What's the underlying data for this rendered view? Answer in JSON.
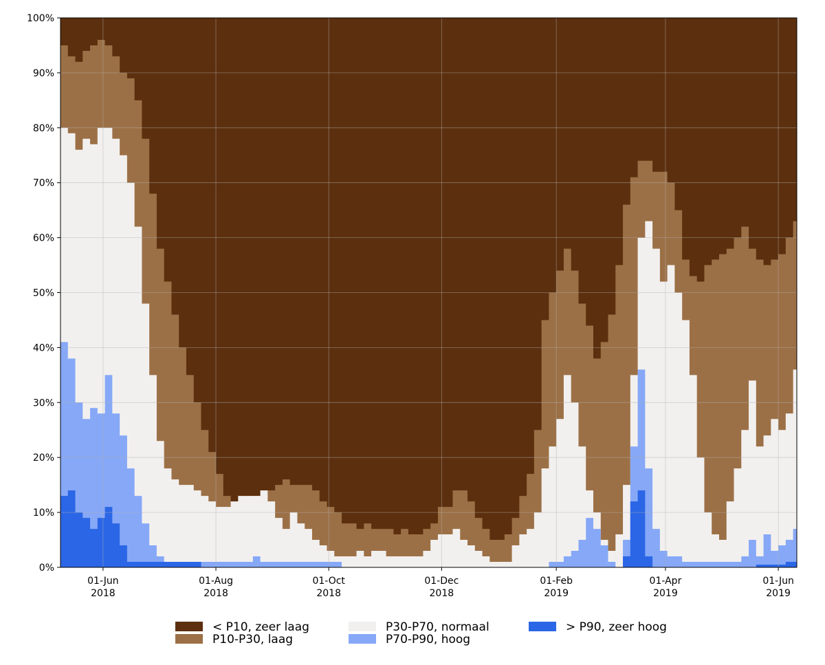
{
  "chart_data": {
    "type": "area",
    "stacked": true,
    "normalized": true,
    "step": true,
    "title": "",
    "xlabel": "",
    "ylabel": "",
    "xlim": [
      "2018-05-09",
      "2019-06-11"
    ],
    "ylim": [
      0,
      100
    ],
    "grid": true,
    "legend_position": "bottom",
    "y_ticks": [
      {
        "value": 0,
        "label": "0%"
      },
      {
        "value": 10,
        "label": "10%"
      },
      {
        "value": 20,
        "label": "20%"
      },
      {
        "value": 30,
        "label": "30%"
      },
      {
        "value": 40,
        "label": "40%"
      },
      {
        "value": 50,
        "label": "50%"
      },
      {
        "value": 60,
        "label": "60%"
      },
      {
        "value": 70,
        "label": "70%"
      },
      {
        "value": 80,
        "label": "80%"
      },
      {
        "value": 90,
        "label": "90%"
      },
      {
        "value": 100,
        "label": "100%"
      }
    ],
    "x_ticks": [
      {
        "date": "2018-06-01",
        "label": "01-Jun",
        "year": "2018"
      },
      {
        "date": "2018-08-01",
        "label": "01-Aug",
        "year": "2018"
      },
      {
        "date": "2018-10-01",
        "label": "01-Oct",
        "year": "2018"
      },
      {
        "date": "2018-12-01",
        "label": "01-Dec",
        "year": "2018"
      },
      {
        "date": "2019-02-01",
        "label": "01-Feb",
        "year": "2019"
      },
      {
        "date": "2019-04-01",
        "label": "01-Apr",
        "year": "2019"
      },
      {
        "date": "2019-06-01",
        "label": "01-Jun",
        "year": "2019"
      }
    ],
    "series_order_from_bottom": [
      "> P90, zeer hoog",
      "P70-P90, hoog",
      "P30-P70, normaal",
      "P10-P30, laag",
      "< P10, zeer laag"
    ],
    "boundaries": {
      "x": [
        "2018-05-09",
        "2018-05-13",
        "2018-05-17",
        "2018-05-21",
        "2018-05-25",
        "2018-05-29",
        "2018-06-02",
        "2018-06-06",
        "2018-06-10",
        "2018-06-14",
        "2018-06-18",
        "2018-06-22",
        "2018-06-26",
        "2018-06-30",
        "2018-07-04",
        "2018-07-08",
        "2018-07-12",
        "2018-07-16",
        "2018-07-20",
        "2018-07-24",
        "2018-07-28",
        "2018-08-01",
        "2018-08-05",
        "2018-08-09",
        "2018-08-13",
        "2018-08-17",
        "2018-08-21",
        "2018-08-25",
        "2018-08-29",
        "2018-09-02",
        "2018-09-06",
        "2018-09-10",
        "2018-09-14",
        "2018-09-18",
        "2018-09-22",
        "2018-09-26",
        "2018-09-30",
        "2018-10-04",
        "2018-10-08",
        "2018-10-12",
        "2018-10-16",
        "2018-10-20",
        "2018-10-24",
        "2018-10-28",
        "2018-11-01",
        "2018-11-05",
        "2018-11-09",
        "2018-11-13",
        "2018-11-17",
        "2018-11-21",
        "2018-11-25",
        "2018-11-29",
        "2018-12-03",
        "2018-12-07",
        "2018-12-11",
        "2018-12-15",
        "2018-12-19",
        "2018-12-23",
        "2018-12-27",
        "2018-12-31",
        "2019-01-04",
        "2019-01-08",
        "2019-01-12",
        "2019-01-16",
        "2019-01-20",
        "2019-01-24",
        "2019-01-28",
        "2019-02-01",
        "2019-02-05",
        "2019-02-09",
        "2019-02-13",
        "2019-02-17",
        "2019-02-21",
        "2019-02-25",
        "2019-03-01",
        "2019-03-05",
        "2019-03-09",
        "2019-03-13",
        "2019-03-17",
        "2019-03-21",
        "2019-03-25",
        "2019-03-29",
        "2019-04-02",
        "2019-04-06",
        "2019-04-10",
        "2019-04-14",
        "2019-04-18",
        "2019-04-22",
        "2019-04-26",
        "2019-04-30",
        "2019-05-04",
        "2019-05-08",
        "2019-05-12",
        "2019-05-16",
        "2019-05-20",
        "2019-05-24",
        "2019-05-28",
        "2019-06-01",
        "2019-06-05",
        "2019-06-09"
      ],
      "gt_P90_top": [
        13,
        14,
        10,
        9,
        7,
        9,
        11,
        8,
        4,
        1,
        1,
        1,
        1,
        1,
        1,
        1,
        1,
        1,
        1,
        0,
        0,
        0,
        0,
        0,
        0,
        0,
        0,
        0,
        0,
        0,
        0,
        0,
        0,
        0,
        0,
        0,
        0,
        0,
        0,
        0,
        0,
        0,
        0,
        0,
        0,
        0,
        0,
        0,
        0,
        0,
        0,
        0,
        0,
        0,
        0,
        0,
        0,
        0,
        0,
        0,
        0,
        0,
        0,
        0,
        0,
        0,
        0,
        0,
        0,
        0,
        0,
        0,
        0,
        0,
        0,
        0,
        2,
        12,
        14,
        2,
        0,
        0,
        0,
        0,
        0,
        0,
        0,
        0,
        0,
        0,
        0,
        0,
        0,
        0,
        0.5,
        0.5,
        0.5,
        0.5,
        1,
        1
      ],
      "P70_P90_top": [
        41,
        38,
        30,
        27,
        29,
        28,
        35,
        28,
        24,
        18,
        13,
        8,
        4,
        2,
        1,
        1,
        1,
        1,
        1,
        1,
        1,
        1,
        1,
        1,
        1,
        1,
        2,
        1,
        1,
        1,
        1,
        1,
        1,
        1,
        1,
        1,
        1,
        1,
        0,
        0,
        0,
        0,
        0,
        0,
        0,
        0,
        0,
        0,
        0,
        0,
        0,
        0,
        0,
        0,
        0,
        0,
        0,
        0,
        0,
        0,
        0,
        0,
        0,
        0,
        0,
        0,
        1,
        1,
        2,
        3,
        5,
        9,
        7,
        4,
        1,
        0,
        5,
        22,
        36,
        18,
        7,
        3,
        2,
        2,
        1,
        1,
        1,
        1,
        1,
        1,
        1,
        1,
        2,
        5,
        2,
        6,
        3,
        4,
        5,
        7
      ],
      "P30_P70_top": [
        80,
        79,
        76,
        78,
        77,
        80,
        80,
        78,
        75,
        70,
        62,
        48,
        35,
        23,
        18,
        16,
        15,
        15,
        14,
        13,
        12,
        11,
        11,
        12,
        13,
        13,
        13,
        14,
        12,
        9,
        7,
        10,
        8,
        7,
        5,
        4,
        3,
        2,
        2,
        2,
        3,
        2,
        3,
        3,
        2,
        2,
        2,
        2,
        2,
        3,
        5,
        6,
        6,
        7,
        5,
        4,
        3,
        2,
        1,
        1,
        1,
        4,
        6,
        7,
        10,
        18,
        22,
        27,
        35,
        30,
        22,
        14,
        10,
        5,
        3,
        6,
        15,
        35,
        60,
        63,
        58,
        52,
        55,
        50,
        45,
        35,
        20,
        10,
        6,
        5,
        12,
        18,
        25,
        34,
        22,
        24,
        27,
        25,
        28,
        36
      ],
      "P10_P30_top": [
        95,
        93,
        92,
        94,
        95,
        96,
        95,
        93,
        90,
        89,
        85,
        78,
        68,
        58,
        52,
        46,
        40,
        35,
        30,
        25,
        21,
        17,
        13,
        11,
        11,
        12,
        13,
        13,
        14,
        15,
        16,
        15,
        15,
        15,
        14,
        12,
        11,
        10,
        8,
        8,
        7,
        8,
        7,
        7,
        7,
        6,
        7,
        6,
        6,
        7,
        8,
        11,
        11,
        14,
        14,
        12,
        9,
        7,
        5,
        5,
        6,
        9,
        13,
        17,
        25,
        45,
        50,
        54,
        58,
        54,
        48,
        44,
        38,
        41,
        46,
        55,
        66,
        71,
        74,
        74,
        72,
        72,
        70,
        65,
        56,
        53,
        52,
        55,
        56,
        57,
        58,
        60,
        62,
        58,
        56,
        55,
        56,
        57,
        60,
        63
      ],
      "lt_P10_top": [
        100,
        100,
        100,
        100,
        100,
        100,
        100,
        100,
        100,
        100,
        100,
        100,
        100,
        100,
        100,
        100,
        100,
        100,
        100,
        100,
        100,
        100,
        100,
        100,
        100,
        100,
        100,
        100,
        100,
        100,
        100,
        100,
        100,
        100,
        100,
        100,
        100,
        100,
        100,
        100,
        100,
        100,
        100,
        100,
        100,
        100,
        100,
        100,
        100,
        100,
        100,
        100,
        100,
        100,
        100,
        100,
        100,
        100,
        100,
        100,
        100,
        100,
        100,
        100,
        100,
        100,
        100,
        100,
        100,
        100,
        100,
        100,
        100,
        100,
        100,
        100,
        100,
        100,
        100,
        100,
        100,
        100,
        100,
        100,
        100,
        100,
        100,
        100,
        100,
        100,
        100,
        100,
        100,
        100,
        100,
        100,
        100,
        100,
        100,
        100
      ]
    }
  },
  "legend": {
    "items": [
      {
        "label": "< P10, zeer laag",
        "color": "#5c2f0e"
      },
      {
        "label": "P10-P30, laag",
        "color": "#9c7046"
      },
      {
        "label": "P30-P70, normaal",
        "color": "#f2f0ef"
      },
      {
        "label": "P70-P90, hoog",
        "color": "#86a8f7"
      },
      {
        "label": "> P90, zeer hoog",
        "color": "#2b66e6"
      }
    ]
  },
  "colors": {
    "lt_P10": "#5c2f0e",
    "P10_P30": "#9c7046",
    "P30_P70": "#f2f0ef",
    "P70_P90": "#86a8f7",
    "gt_P90": "#2b66e6"
  }
}
